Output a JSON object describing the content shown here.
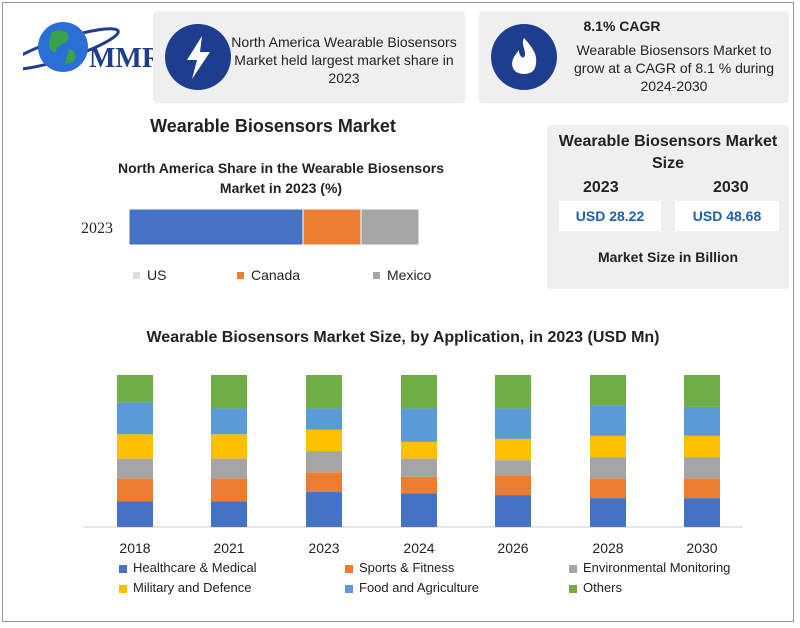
{
  "brand": {
    "logo_text": "MMR"
  },
  "card1": {
    "text": "North America Wearable Biosensors Market held largest market share in 2023"
  },
  "card2": {
    "title": "8.1% CAGR",
    "text": "Wearable Biosensors Market to grow at a CAGR of 8.1 % during 2024-2030"
  },
  "section_title": "Wearable Biosensors Market",
  "size_panel": {
    "title": "Wearable Biosensors Market Size",
    "year_a": "2023",
    "year_b": "2030",
    "value_a": "USD 28.22",
    "value_b": "USD 48.68",
    "footer": "Market Size in Billion"
  },
  "colors": {
    "healthcare": "#4472c4",
    "sports": "#ed7d31",
    "environmental": "#a5a5a5",
    "military": "#ffc000",
    "food": "#5b9bd5",
    "others": "#70ad47",
    "icon_bg": "#1f3d8f",
    "value_text": "#1f5fb0"
  },
  "chart_data": [
    {
      "type": "bar",
      "stacked": true,
      "orientation": "horizontal",
      "title": "North America Share in the Wearable  Biosensors Market in 2023 (%)",
      "categories": [
        "2023"
      ],
      "series": [
        {
          "name": "US",
          "values": [
            60
          ],
          "color": "#4472c4"
        },
        {
          "name": "Canada",
          "values": [
            20
          ],
          "color": "#ed7d31"
        },
        {
          "name": "Mexico",
          "values": [
            20
          ],
          "color": "#a5a5a5"
        }
      ],
      "xlim": [
        0,
        100
      ],
      "legend": "bottom"
    },
    {
      "type": "bar",
      "stacked": true,
      "title": "Wearable Biosensors Market Size, by Application, in 2023 (USD Mn)",
      "categories": [
        "2018",
        "2021",
        "2023",
        "2024",
        "2026",
        "2028",
        "2030"
      ],
      "series": [
        {
          "name": "Healthcare & Medical",
          "values": [
            17,
            17,
            23,
            22,
            21,
            19,
            19
          ],
          "color": "#4472c4"
        },
        {
          "name": "Sports & Fitness",
          "values": [
            15,
            15,
            13,
            11,
            13,
            13,
            13
          ],
          "color": "#ed7d31"
        },
        {
          "name": "Environmental Monitoring",
          "values": [
            13,
            13,
            14,
            12,
            10,
            14,
            14
          ],
          "color": "#a5a5a5"
        },
        {
          "name": "Military and Defence",
          "values": [
            16,
            16,
            14,
            11,
            14,
            14,
            14
          ],
          "color": "#ffc000"
        },
        {
          "name": "Food and Agriculture",
          "values": [
            21,
            17,
            14,
            22,
            20,
            20,
            19
          ],
          "color": "#5b9bd5"
        },
        {
          "name": "Others",
          "values": [
            18,
            22,
            22,
            22,
            22,
            20,
            21
          ],
          "color": "#70ad47"
        }
      ],
      "ylim": [
        0,
        100
      ],
      "legend": "bottom"
    }
  ]
}
